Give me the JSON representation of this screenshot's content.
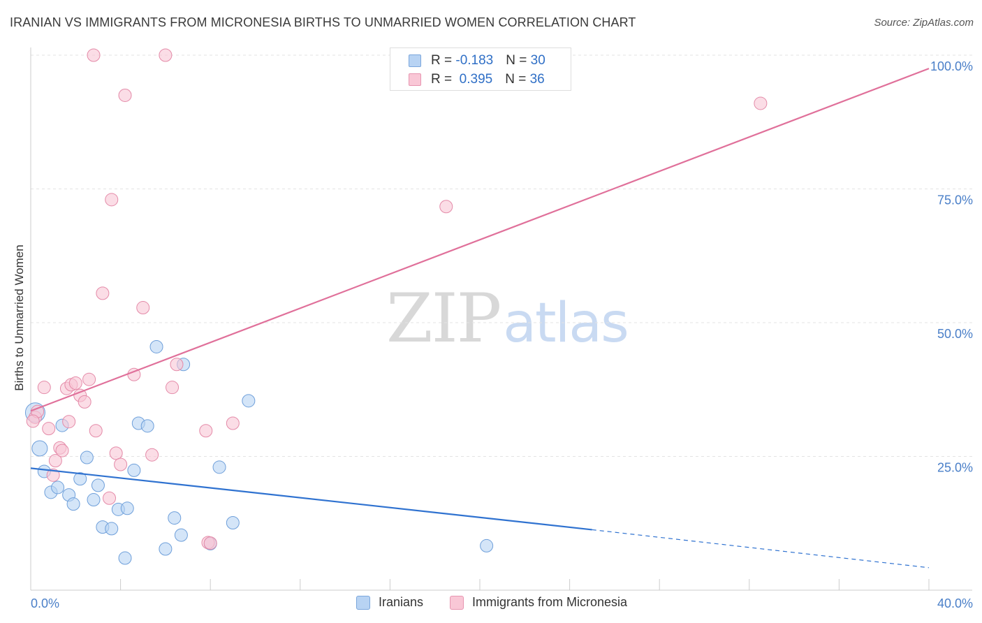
{
  "title": "IRANIAN VS IMMIGRANTS FROM MICRONESIA BIRTHS TO UNMARRIED WOMEN CORRELATION CHART",
  "source": "Source: ZipAtlas.com",
  "watermark": {
    "zip": "ZIP",
    "atlas": "atlas"
  },
  "legend": {
    "rows": [
      {
        "r_label": "R = ",
        "r_value": "-0.183",
        "n_label": "N = ",
        "n_value": "30",
        "color": "#b8d3f3",
        "border": "#7aa6dc"
      },
      {
        "r_label": "R = ",
        "r_value": " 0.395",
        "n_label": "N = ",
        "n_value": "36",
        "color": "#f9c7d6",
        "border": "#e795b0"
      }
    ]
  },
  "bottom_legend": [
    {
      "label": "Iranians",
      "color": "#b8d3f3",
      "border": "#7aa6dc"
    },
    {
      "label": "Immigrants from Micronesia",
      "color": "#f9c7d6",
      "border": "#e795b0"
    }
  ],
  "chart_data": {
    "type": "scatter",
    "ylabel": "Births to Unmarried Women",
    "xlim": [
      0,
      40
    ],
    "ylim": [
      0,
      100
    ],
    "x_tick_labels": [
      "0.0%",
      "40.0%"
    ],
    "y_ticks": [
      {
        "value": 25,
        "label": "25.0%"
      },
      {
        "value": 50,
        "label": "50.0%"
      },
      {
        "value": 75,
        "label": "75.0%"
      },
      {
        "value": 100,
        "label": "100.0%"
      }
    ],
    "grid": true,
    "series": [
      {
        "name": "Iranians",
        "color": "#b8d3f3",
        "stroke": "#6e9fda",
        "trend_color": "#2f72d0",
        "trend": {
          "x0": 0,
          "y0": 22.8,
          "x1": 25,
          "y1": 11.3,
          "dash_to_x": 40,
          "dash_to_y": 4.2
        },
        "points": [
          [
            0.2,
            33.2,
            14
          ],
          [
            0.4,
            26.5,
            11
          ],
          [
            0.6,
            22.2,
            9
          ],
          [
            0.9,
            18.3,
            9
          ],
          [
            1.2,
            19.2,
            9
          ],
          [
            1.4,
            30.8,
            9
          ],
          [
            1.7,
            17.8,
            9
          ],
          [
            1.9,
            16.1,
            9
          ],
          [
            2.2,
            20.8,
            9
          ],
          [
            2.5,
            24.8,
            9
          ],
          [
            2.8,
            16.9,
            9
          ],
          [
            3.0,
            19.6,
            9
          ],
          [
            3.2,
            11.8,
            9
          ],
          [
            3.6,
            11.5,
            9
          ],
          [
            3.9,
            15.1,
            9
          ],
          [
            4.3,
            15.3,
            9
          ],
          [
            4.6,
            22.4,
            9
          ],
          [
            4.8,
            31.2,
            9
          ],
          [
            5.2,
            30.7,
            9
          ],
          [
            4.2,
            6.0,
            9
          ],
          [
            5.6,
            45.5,
            9
          ],
          [
            6.0,
            7.7,
            9
          ],
          [
            6.4,
            13.5,
            9
          ],
          [
            6.8,
            42.2,
            9
          ],
          [
            6.7,
            10.3,
            9
          ],
          [
            8.0,
            8.7,
            9
          ],
          [
            8.4,
            23.0,
            9
          ],
          [
            9.0,
            12.6,
            9
          ],
          [
            9.7,
            35.4,
            9
          ],
          [
            20.3,
            8.3,
            9
          ]
        ]
      },
      {
        "name": "Immigrants from Micronesia",
        "color": "#f9c7d6",
        "stroke": "#e48aa8",
        "trend_color": "#e0709a",
        "trend": {
          "x0": 0,
          "y0": 33.5,
          "x1": 40,
          "y1": 97.5
        },
        "points": [
          [
            0.2,
            32.3,
            9
          ],
          [
            0.3,
            33.4,
            9
          ],
          [
            0.6,
            37.9,
            9
          ],
          [
            0.8,
            30.2,
            9
          ],
          [
            1.0,
            21.5,
            9
          ],
          [
            1.1,
            24.2,
            9
          ],
          [
            1.3,
            26.6,
            9
          ],
          [
            1.4,
            26.1,
            9
          ],
          [
            1.6,
            37.7,
            9
          ],
          [
            1.7,
            31.5,
            9
          ],
          [
            1.8,
            38.4,
            9
          ],
          [
            2.0,
            38.7,
            9
          ],
          [
            2.2,
            36.4,
            9
          ],
          [
            2.4,
            35.2,
            9
          ],
          [
            2.6,
            39.4,
            9
          ],
          [
            2.9,
            29.8,
            9
          ],
          [
            2.8,
            100.0,
            9
          ],
          [
            3.2,
            55.5,
            9
          ],
          [
            3.5,
            17.2,
            9
          ],
          [
            3.6,
            73.0,
            9
          ],
          [
            3.8,
            25.6,
            9
          ],
          [
            4.0,
            23.5,
            9
          ],
          [
            4.2,
            92.5,
            9
          ],
          [
            4.6,
            40.3,
            9
          ],
          [
            5.0,
            52.8,
            9
          ],
          [
            5.4,
            25.3,
            9
          ],
          [
            6.0,
            100.0,
            9
          ],
          [
            6.3,
            37.9,
            9
          ],
          [
            6.5,
            42.2,
            9
          ],
          [
            7.8,
            29.8,
            9
          ],
          [
            7.9,
            8.9,
            9
          ],
          [
            8.0,
            8.8,
            9
          ],
          [
            9.0,
            31.2,
            9
          ],
          [
            18.5,
            71.7,
            9
          ],
          [
            32.5,
            91.0,
            9
          ],
          [
            0.1,
            31.6,
            9
          ]
        ]
      }
    ]
  }
}
